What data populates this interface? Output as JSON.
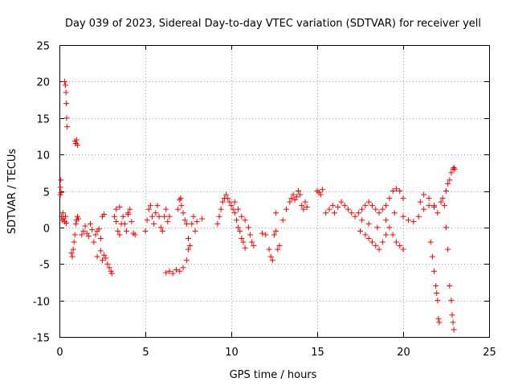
{
  "chart_data": {
    "type": "scatter",
    "title": "Day 039 of 2023, Sidereal Day-to-day VTEC variation (SDTVAR) for receiver yell",
    "xlabel": "GPS time / hours",
    "ylabel": "SDTVAR / TECUs",
    "xlim": [
      0,
      25
    ],
    "ylim": [
      -15,
      25
    ],
    "xticks": [
      "0",
      "5",
      "10",
      "15",
      "20",
      "25"
    ],
    "yticks": [
      "-15",
      "-10",
      "-5",
      "0",
      "5",
      "10",
      "15",
      "20",
      "25"
    ],
    "grid": true,
    "marker": "+",
    "color": "#ff0000",
    "series": [
      {
        "name": "SDTVAR",
        "points": [
          [
            0.05,
            4.5
          ],
          [
            0.05,
            5.5
          ],
          [
            0.08,
            6.5
          ],
          [
            0.1,
            4.8
          ],
          [
            0.12,
            1.5
          ],
          [
            0.15,
            1.0
          ],
          [
            0.2,
            2.0
          ],
          [
            0.25,
            1.2
          ],
          [
            0.3,
            0.8
          ],
          [
            0.35,
            1.5
          ],
          [
            0.4,
            0.6
          ],
          [
            0.3,
            20.0
          ],
          [
            0.35,
            19.5
          ],
          [
            0.38,
            18.5
          ],
          [
            0.4,
            17.0
          ],
          [
            0.42,
            15.0
          ],
          [
            0.45,
            13.8
          ],
          [
            0.9,
            11.8
          ],
          [
            0.95,
            11.5
          ],
          [
            1.0,
            12.0
          ],
          [
            1.05,
            11.3
          ],
          [
            0.7,
            -3.5
          ],
          [
            0.75,
            -4.0
          ],
          [
            0.8,
            -3.0
          ],
          [
            0.85,
            -2.0
          ],
          [
            0.9,
            -1.0
          ],
          [
            0.95,
            0.5
          ],
          [
            1.0,
            1.0
          ],
          [
            1.05,
            1.5
          ],
          [
            1.1,
            1.2
          ],
          [
            1.3,
            -1.0
          ],
          [
            1.4,
            -0.5
          ],
          [
            1.5,
            0.2
          ],
          [
            1.6,
            -0.8
          ],
          [
            1.7,
            -1.2
          ],
          [
            1.8,
            0.5
          ],
          [
            1.9,
            -0.3
          ],
          [
            2.0,
            -2.0
          ],
          [
            2.1,
            -1.0
          ],
          [
            2.2,
            -0.5
          ],
          [
            2.3,
            -0.2
          ],
          [
            2.4,
            -1.5
          ],
          [
            2.2,
            -4.0
          ],
          [
            2.4,
            -3.2
          ],
          [
            2.5,
            -4.5
          ],
          [
            2.6,
            -3.8
          ],
          [
            2.7,
            -4.2
          ],
          [
            2.8,
            -5.0
          ],
          [
            2.9,
            -5.5
          ],
          [
            3.0,
            -6.0
          ],
          [
            3.05,
            -6.3
          ],
          [
            2.5,
            1.5
          ],
          [
            2.6,
            1.8
          ],
          [
            3.2,
            1.5
          ],
          [
            3.3,
            0.8
          ],
          [
            3.4,
            -0.5
          ],
          [
            3.5,
            -1.0
          ],
          [
            3.6,
            0.5
          ],
          [
            3.7,
            1.5
          ],
          [
            3.8,
            0.5
          ],
          [
            3.9,
            -0.5
          ],
          [
            4.0,
            1.8
          ],
          [
            4.1,
            2.5
          ],
          [
            4.2,
            0.8
          ],
          [
            4.3,
            -0.8
          ],
          [
            4.4,
            -1.0
          ],
          [
            3.3,
            2.5
          ],
          [
            3.5,
            2.8
          ],
          [
            4.0,
            2.0
          ],
          [
            5.0,
            -0.5
          ],
          [
            5.1,
            1.0
          ],
          [
            5.2,
            2.5
          ],
          [
            5.3,
            3.0
          ],
          [
            5.4,
            1.5
          ],
          [
            5.5,
            0.5
          ],
          [
            5.6,
            2.0
          ],
          [
            5.7,
            3.0
          ],
          [
            5.8,
            1.5
          ],
          [
            5.9,
            0.0
          ],
          [
            6.0,
            -0.5
          ],
          [
            6.1,
            1.5
          ],
          [
            6.2,
            2.5
          ],
          [
            6.3,
            0.8
          ],
          [
            6.4,
            1.5
          ],
          [
            6.2,
            -6.2
          ],
          [
            6.4,
            -6.0
          ],
          [
            6.6,
            -6.3
          ],
          [
            6.8,
            -5.8
          ],
          [
            7.0,
            -6.0
          ],
          [
            7.2,
            -5.5
          ],
          [
            7.4,
            -4.5
          ],
          [
            7.5,
            -3.0
          ],
          [
            6.9,
            2.5
          ],
          [
            7.0,
            3.8
          ],
          [
            7.05,
            4.0
          ],
          [
            7.1,
            3.0
          ],
          [
            7.2,
            2.0
          ],
          [
            7.3,
            1.0
          ],
          [
            7.4,
            0.5
          ],
          [
            7.5,
            -1.5
          ],
          [
            7.6,
            -2.5
          ],
          [
            7.7,
            0.5
          ],
          [
            7.8,
            1.5
          ],
          [
            7.9,
            -0.5
          ],
          [
            8.0,
            0.8
          ],
          [
            8.3,
            1.2
          ],
          [
            9.2,
            0.5
          ],
          [
            9.3,
            1.5
          ],
          [
            9.4,
            2.5
          ],
          [
            9.5,
            3.5
          ],
          [
            9.6,
            4.0
          ],
          [
            9.7,
            4.5
          ],
          [
            9.8,
            4.0
          ],
          [
            9.9,
            3.5
          ],
          [
            10.0,
            3.0
          ],
          [
            10.1,
            2.5
          ],
          [
            10.2,
            2.0
          ],
          [
            10.3,
            1.0
          ],
          [
            10.4,
            0.0
          ],
          [
            10.5,
            -0.5
          ],
          [
            10.6,
            -1.5
          ],
          [
            10.7,
            -2.0
          ],
          [
            10.8,
            -2.8
          ],
          [
            10.2,
            3.5
          ],
          [
            10.4,
            2.5
          ],
          [
            10.6,
            1.5
          ],
          [
            10.8,
            1.0
          ],
          [
            11.0,
            0.0
          ],
          [
            11.1,
            -1.0
          ],
          [
            11.2,
            -2.0
          ],
          [
            11.3,
            -2.5
          ],
          [
            11.8,
            -0.8
          ],
          [
            12.0,
            -1.0
          ],
          [
            12.2,
            -3.0
          ],
          [
            12.3,
            -4.0
          ],
          [
            12.4,
            -4.5
          ],
          [
            12.5,
            -1.0
          ],
          [
            12.6,
            -0.5
          ],
          [
            12.7,
            -3.0
          ],
          [
            12.8,
            -2.5
          ],
          [
            12.6,
            2.0
          ],
          [
            13.0,
            1.0
          ],
          [
            13.2,
            2.5
          ],
          [
            13.4,
            3.5
          ],
          [
            13.5,
            4.0
          ],
          [
            13.6,
            4.5
          ],
          [
            13.7,
            3.8
          ],
          [
            13.8,
            4.2
          ],
          [
            13.9,
            5.0
          ],
          [
            14.0,
            4.5
          ],
          [
            14.1,
            3.0
          ],
          [
            14.2,
            2.5
          ],
          [
            14.3,
            3.5
          ],
          [
            14.4,
            2.8
          ],
          [
            15.0,
            5.0
          ],
          [
            15.1,
            4.8
          ],
          [
            15.2,
            4.5
          ],
          [
            15.3,
            5.2
          ],
          [
            15.5,
            2.0
          ],
          [
            15.7,
            2.5
          ],
          [
            15.9,
            3.0
          ],
          [
            16.0,
            2.0
          ],
          [
            16.2,
            2.8
          ],
          [
            16.4,
            3.5
          ],
          [
            16.6,
            3.0
          ],
          [
            16.8,
            2.5
          ],
          [
            17.0,
            2.0
          ],
          [
            17.2,
            1.5
          ],
          [
            17.4,
            2.0
          ],
          [
            17.6,
            2.5
          ],
          [
            17.8,
            3.0
          ],
          [
            18.0,
            3.5
          ],
          [
            18.2,
            3.0
          ],
          [
            18.4,
            2.5
          ],
          [
            18.6,
            2.0
          ],
          [
            18.8,
            2.5
          ],
          [
            19.0,
            3.0
          ],
          [
            19.2,
            4.0
          ],
          [
            19.4,
            5.0
          ],
          [
            19.6,
            5.3
          ],
          [
            19.8,
            5.0
          ],
          [
            20.0,
            4.0
          ],
          [
            17.5,
            -0.5
          ],
          [
            17.8,
            -1.0
          ],
          [
            18.0,
            -1.5
          ],
          [
            18.2,
            -2.0
          ],
          [
            18.4,
            -2.5
          ],
          [
            18.6,
            -3.0
          ],
          [
            18.8,
            -2.0
          ],
          [
            19.0,
            -1.0
          ],
          [
            19.2,
            0.0
          ],
          [
            19.4,
            -1.0
          ],
          [
            19.6,
            -2.0
          ],
          [
            19.8,
            -2.5
          ],
          [
            20.0,
            -3.0
          ],
          [
            17.6,
            1.0
          ],
          [
            18.0,
            0.5
          ],
          [
            18.5,
            0.0
          ],
          [
            19.0,
            1.0
          ],
          [
            19.5,
            2.0
          ],
          [
            20.0,
            1.5
          ],
          [
            20.3,
            1.0
          ],
          [
            20.6,
            0.8
          ],
          [
            20.9,
            1.5
          ],
          [
            21.2,
            2.5
          ],
          [
            21.5,
            3.0
          ],
          [
            21.8,
            2.8
          ],
          [
            22.0,
            2.0
          ],
          [
            21.0,
            3.5
          ],
          [
            21.2,
            4.5
          ],
          [
            21.5,
            4.0
          ],
          [
            21.8,
            3.0
          ],
          [
            21.6,
            -2.0
          ],
          [
            21.7,
            -4.0
          ],
          [
            21.8,
            -6.0
          ],
          [
            21.9,
            -8.0
          ],
          [
            21.95,
            -9.0
          ],
          [
            22.0,
            -10.0
          ],
          [
            22.05,
            -12.5
          ],
          [
            22.1,
            -13.0
          ],
          [
            22.2,
            3.5
          ],
          [
            22.3,
            4.0
          ],
          [
            22.4,
            3.0
          ],
          [
            22.5,
            5.0
          ],
          [
            22.6,
            6.0
          ],
          [
            22.7,
            6.5
          ],
          [
            22.8,
            7.5
          ],
          [
            22.9,
            8.0
          ],
          [
            22.95,
            8.2
          ],
          [
            23.0,
            8.0
          ],
          [
            22.5,
            0.0
          ],
          [
            22.6,
            -3.0
          ],
          [
            22.7,
            -8.0
          ],
          [
            22.8,
            -10.0
          ],
          [
            22.85,
            -12.0
          ],
          [
            22.9,
            -13.0
          ],
          [
            22.95,
            -14.0
          ]
        ]
      }
    ]
  }
}
